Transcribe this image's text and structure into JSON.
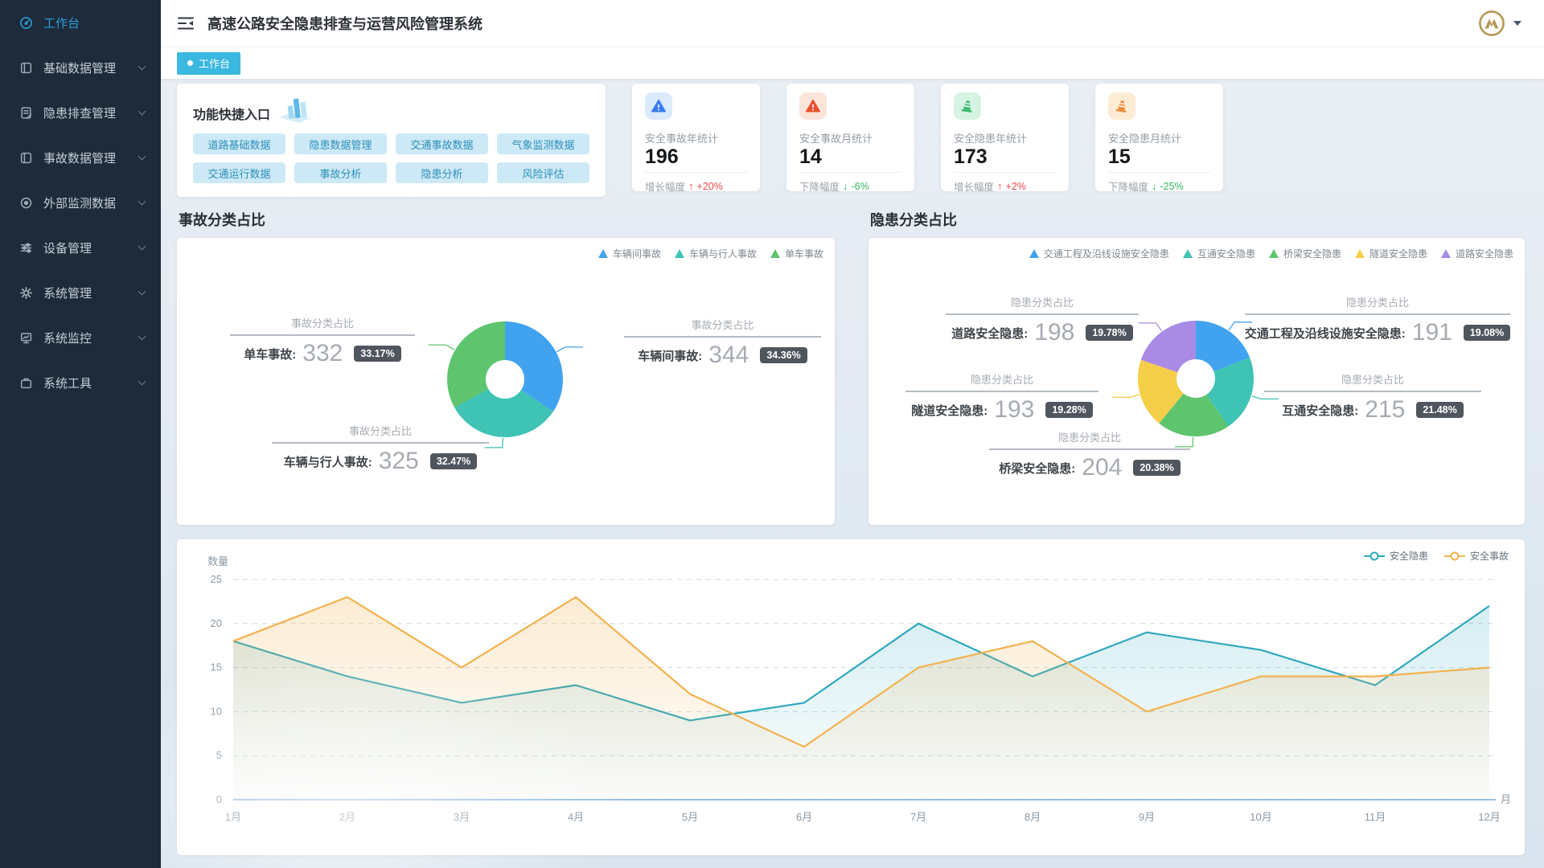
{
  "app": {
    "title": "高速公路安全隐患排查与运营风险管理系统"
  },
  "header": {
    "collapse_icon": "collapse-menu-icon",
    "user_menu": {
      "avatar_icon": "gold-emblem-avatar",
      "caret_icon": "chevron-down-icon"
    }
  },
  "sidebar": {
    "items": [
      {
        "label": "工作台",
        "icon": "dashboard-gauge-icon",
        "active": true,
        "has_children": false
      },
      {
        "label": "基础数据管理",
        "icon": "base-data-icon",
        "active": false,
        "has_children": true
      },
      {
        "label": "隐患排查管理",
        "icon": "inspection-doc-icon",
        "active": false,
        "has_children": true
      },
      {
        "label": "事故数据管理",
        "icon": "accident-data-icon",
        "active": false,
        "has_children": true
      },
      {
        "label": "外部监测数据",
        "icon": "eye-monitor-icon",
        "active": false,
        "has_children": true
      },
      {
        "label": "设备管理",
        "icon": "sliders-icon",
        "active": false,
        "has_children": true
      },
      {
        "label": "系统管理",
        "icon": "gear-icon",
        "active": false,
        "has_children": true
      },
      {
        "label": "系统监控",
        "icon": "monitor-chart-icon",
        "active": false,
        "has_children": true
      },
      {
        "label": "系统工具",
        "icon": "briefcase-icon",
        "active": false,
        "has_children": true
      }
    ]
  },
  "tabs": [
    {
      "label": "工作台",
      "active": true
    }
  ],
  "quick_entry": {
    "title": "功能快捷入口",
    "icon": "3d-bar-building-icon",
    "buttons": [
      "道路基础数据",
      "隐患数据管理",
      "交通事故数据",
      "气象监测数据",
      "交通运行数据",
      "事故分析",
      "隐患分析",
      "风险评估"
    ]
  },
  "stat_cards": [
    {
      "label": "安全事故年统计",
      "value": "196",
      "icon": "warning-triangle-icon",
      "icon_color": "#3b7cf0",
      "trend_label": "增长幅度",
      "arrow": "↑",
      "trend_value": "+20%",
      "trend": "up"
    },
    {
      "label": "安全事故月统计",
      "value": "14",
      "icon": "warning-triangle-icon",
      "icon_color": "#e8502e",
      "trend_label": "下降幅度",
      "arrow": "↓",
      "trend_value": "-6%",
      "trend": "down"
    },
    {
      "label": "安全隐患年统计",
      "value": "173",
      "icon": "traffic-cone-icon",
      "icon_color": "#3dba6f",
      "trend_label": "增长幅度",
      "arrow": "↑",
      "trend_value": "+2%",
      "trend": "up"
    },
    {
      "label": "安全隐患月统计",
      "value": "15",
      "icon": "traffic-cone-icon",
      "icon_color": "#ef8a3a",
      "trend_label": "下降幅度",
      "arrow": "↓",
      "trend_value": "-25%",
      "trend": "down"
    }
  ],
  "sections": {
    "accident_pie_title": "事故分类占比",
    "hazard_pie_title": "隐患分类占比"
  },
  "chart_data": [
    {
      "type": "pie",
      "title": "事故分类占比",
      "label_card_title": "事故分类占比",
      "legend_position": "top-right",
      "slices": [
        {
          "name": "车辆间事故",
          "value": 344,
          "percent": "34.36%",
          "color": "#41a3f0"
        },
        {
          "name": "车辆与行人事故",
          "value": 325,
          "percent": "32.47%",
          "color": "#3ec3b4"
        },
        {
          "name": "单车事故",
          "value": 332,
          "percent": "33.17%",
          "color": "#5fc46e"
        }
      ]
    },
    {
      "type": "pie",
      "title": "隐患分类占比",
      "label_card_title": "隐患分类占比",
      "legend_position": "top-right",
      "slices": [
        {
          "name": "交通工程及沿线设施安全隐患",
          "value": 191,
          "percent": "19.08%",
          "color": "#41a3f0"
        },
        {
          "name": "互通安全隐患",
          "value": 215,
          "percent": "21.48%",
          "color": "#3ec3b4"
        },
        {
          "name": "桥梁安全隐患",
          "value": 204,
          "percent": "20.38%",
          "color": "#5fc46e"
        },
        {
          "name": "隧道安全隐患",
          "value": 193,
          "percent": "19.28%",
          "color": "#f5ce4a"
        },
        {
          "name": "道路安全隐患",
          "value": 198,
          "percent": "19.78%",
          "color": "#a98be5"
        }
      ]
    },
    {
      "type": "area-line",
      "title": "",
      "ylabel": "数量",
      "xlabel": "月",
      "ylim": [
        0,
        25
      ],
      "yticks": [
        0,
        5,
        10,
        15,
        20,
        25
      ],
      "grid": "dashed-horizontal",
      "legend_position": "top-right",
      "categories": [
        "1月",
        "2月",
        "3月",
        "4月",
        "5月",
        "6月",
        "7月",
        "8月",
        "9月",
        "10月",
        "11月",
        "12月"
      ],
      "series": [
        {
          "name": "安全隐患",
          "color": "#2fa8be",
          "values": [
            18,
            14,
            11,
            13,
            9,
            11,
            20,
            14,
            19,
            17,
            13,
            22
          ]
        },
        {
          "name": "安全事故",
          "color": "#f3b24f",
          "values": [
            18,
            23,
            15,
            23,
            12,
            6,
            15,
            18,
            10,
            14,
            14,
            15
          ]
        }
      ]
    }
  ]
}
